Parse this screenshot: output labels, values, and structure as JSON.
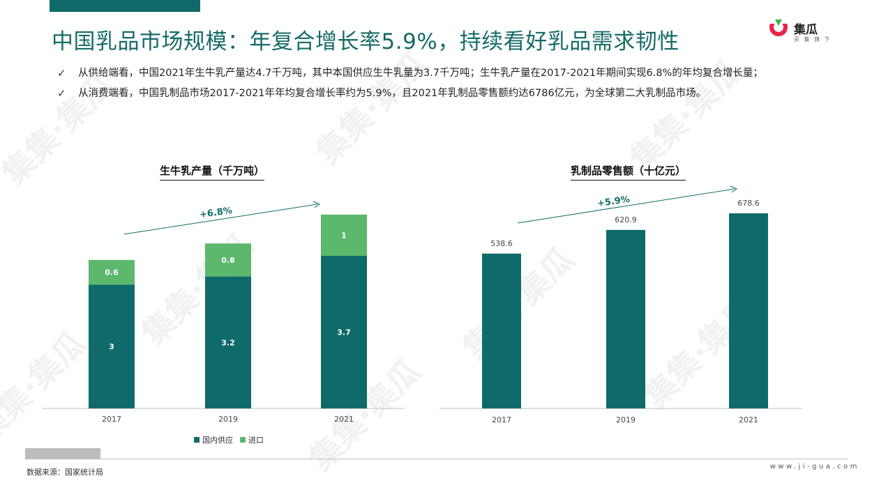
{
  "header": {
    "title": "中国乳品市场规模：年复合增长率5.9%，持续看好乳品需求韧性",
    "logo_name": "集瓜",
    "logo_tagline": "买 集 旗 下",
    "brand_color": "#0f6b69"
  },
  "bullets": [
    {
      "icon": "check-mark",
      "text": "从供给端看，中国2021年生牛乳产量达4.7千万吨，其中本国供应生牛乳量为3.7千万吨；生牛乳产量在2017-2021年期间实现6.8%的年均复合增长量；"
    },
    {
      "icon": "check-mark",
      "text": "从消费端看，中国乳制品市场2017-2021年年均复合增长率约为5.9%，且2021年乳制品零售额约达6786亿元，为全球第二大乳制品市场。"
    }
  ],
  "chart_data": [
    {
      "type": "bar",
      "stacked": true,
      "title": "生牛乳产量（千万吨）",
      "categories": [
        "2017",
        "2019",
        "2021"
      ],
      "series": [
        {
          "name": "国内供应",
          "values": [
            3,
            3.2,
            3.7
          ],
          "labels": [
            "3",
            "3.2",
            "3.7"
          ],
          "color": "#0f6b69"
        },
        {
          "name": "进口",
          "values": [
            0.6,
            0.8,
            1
          ],
          "labels": [
            "0.6",
            "0.8",
            "1"
          ],
          "color": "#5cb86c"
        }
      ],
      "annotation": "+6.8%",
      "ylim": [
        0,
        4.9
      ],
      "legend": "bottom",
      "grid": false
    },
    {
      "type": "bar",
      "title": "乳制品零售额（十亿元）",
      "categories": [
        "2017",
        "2019",
        "2021"
      ],
      "values": [
        538.6,
        620.9,
        678.6
      ],
      "labels": [
        "538.6",
        "620.9",
        "678.6"
      ],
      "color": "#0f6b69",
      "annotation": "+5.9%",
      "ylim": [
        0,
        720
      ],
      "grid": false
    }
  ],
  "footer": {
    "source": "数据来源：国家统计局",
    "website": "www.ji-gua.com"
  },
  "watermark": {
    "text": "集集·集瓜"
  }
}
